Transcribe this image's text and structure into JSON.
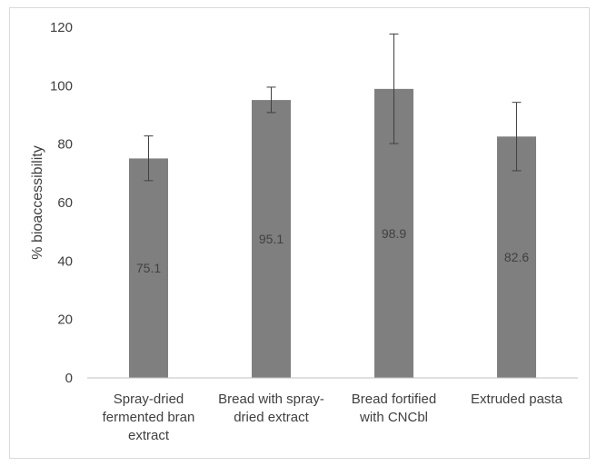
{
  "chart_data": {
    "type": "bar",
    "ylabel": "% bioaccessibility",
    "ylim": [
      0,
      120
    ],
    "yticks": [
      0,
      20,
      40,
      60,
      80,
      100,
      120
    ],
    "categories": [
      [
        "Spray-dried",
        "fermented bran",
        "extract"
      ],
      [
        "Bread with spray-",
        "dried extract"
      ],
      [
        "Bread fortified",
        "with CNCbl"
      ],
      [
        "Extruded pasta"
      ]
    ],
    "values": [
      75.1,
      95.1,
      98.9,
      82.6
    ],
    "data_labels": [
      "75.1",
      "95.1",
      "98.9",
      "82.6"
    ],
    "error_bars": [
      {
        "low": 67.5,
        "high": 82.8
      },
      {
        "low": 90.8,
        "high": 99.5
      },
      {
        "low": 80.2,
        "high": 117.7
      },
      {
        "low": 70.9,
        "high": 94.3
      }
    ],
    "grid": false,
    "legend": "none"
  },
  "colors": {
    "bar": "#7f7f7f",
    "axis": "#bfbfbf",
    "error": "#404040"
  }
}
